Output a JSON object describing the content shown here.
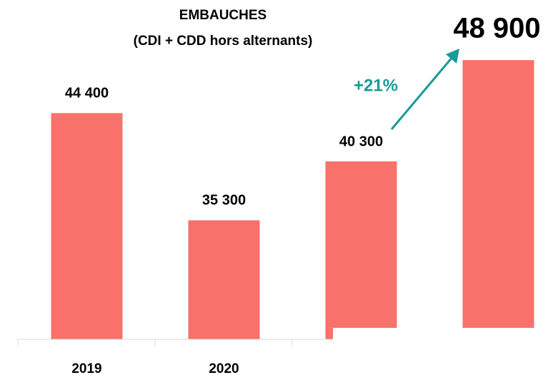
{
  "chart_data": {
    "type": "bar",
    "title": "EMBAUCHES",
    "subtitle": "(CDI + CDD hors alternants)",
    "categories": [
      "2019",
      "2020",
      null,
      null
    ],
    "values": [
      44400,
      35300,
      40300,
      48900
    ],
    "value_labels": [
      "44 400",
      "35 300",
      "40 300",
      "48 900"
    ],
    "color": "#f8716a",
    "ylim": [
      25200,
      50000
    ],
    "annotation": {
      "text": "+21%",
      "color": "#1a9a96"
    }
  }
}
